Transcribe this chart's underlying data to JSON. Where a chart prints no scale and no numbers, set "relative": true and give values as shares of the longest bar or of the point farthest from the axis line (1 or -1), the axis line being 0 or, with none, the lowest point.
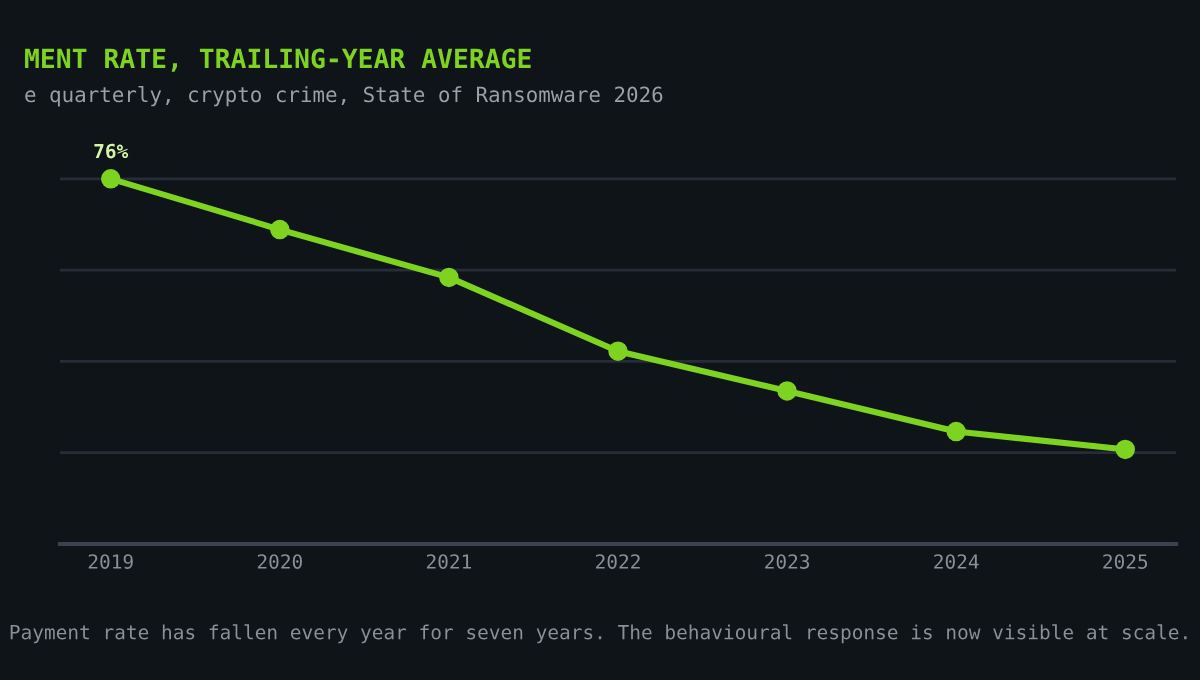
{
  "chart_data": {
    "type": "line",
    "title": "MENT RATE, TRAILING-YEAR AVERAGE",
    "subtitle": "e quarterly, crypto crime, State of Ransomware 2026",
    "categories": [
      "2019",
      "2020",
      "2021",
      "2022",
      "2023",
      "2024",
      "2025"
    ],
    "relative": true,
    "series": [
      {
        "color": "#7ed321",
        "values": [
          1,
          0.861,
          0.73,
          0.528,
          0.419,
          0.308,
          0.259
        ]
      }
    ],
    "marker": "circle",
    "line_style": "solid",
    "grid": "y",
    "legend": false,
    "annotations": [
      {
        "text": "76%",
        "x": "2019",
        "y": 1
      },
      "Payment rate has fallen every year for seven years. The behavioural response is now visible at scale."
    ]
  }
}
